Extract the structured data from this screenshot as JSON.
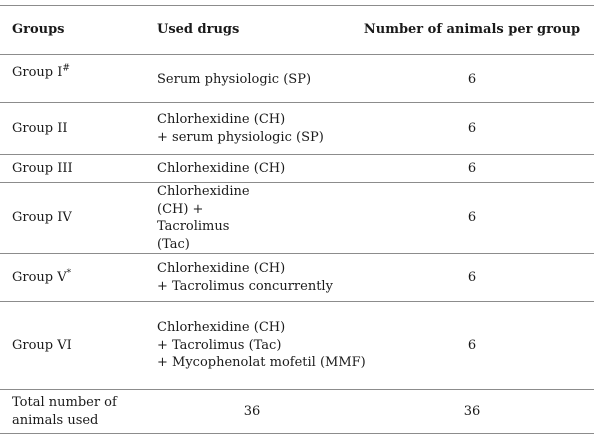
{
  "headers": {
    "groups": "Groups",
    "used_drugs": "Used drugs",
    "animals": "Number of animals per group"
  },
  "rows": [
    {
      "group": "Group I",
      "group_mark": "#",
      "drugs": [
        "Serum physiologic (SP)"
      ],
      "count": "6"
    },
    {
      "group": "Group II",
      "group_mark": "",
      "drugs": [
        "Chlorhexidine (CH)",
        "+ serum physiologic (SP)"
      ],
      "count": "6"
    },
    {
      "group": "Group III",
      "group_mark": "",
      "drugs": [
        "Chlorhexidine (CH)"
      ],
      "count": "6"
    },
    {
      "group": "Group IV",
      "group_mark": "",
      "drugs": [
        "Chlorhexidine",
        "(CH) +",
        "Tacrolimus",
        "(Tac)"
      ],
      "count": "6"
    },
    {
      "group": "Group V",
      "group_mark": "*",
      "drugs": [
        "Chlorhexidine (CH)",
        "+ Tacrolimus concurrently"
      ],
      "count": "6"
    },
    {
      "group": "Group VI",
      "group_mark": "",
      "drugs": [
        "Chlorhexidine (CH)",
        "+ Tacrolimus (Tac)",
        "+ Mycophenolat mofetil (MMF)"
      ],
      "count": "6"
    }
  ],
  "total": {
    "label": [
      "Total number of",
      "animals used"
    ],
    "drugs_value": "36",
    "count": "36"
  }
}
